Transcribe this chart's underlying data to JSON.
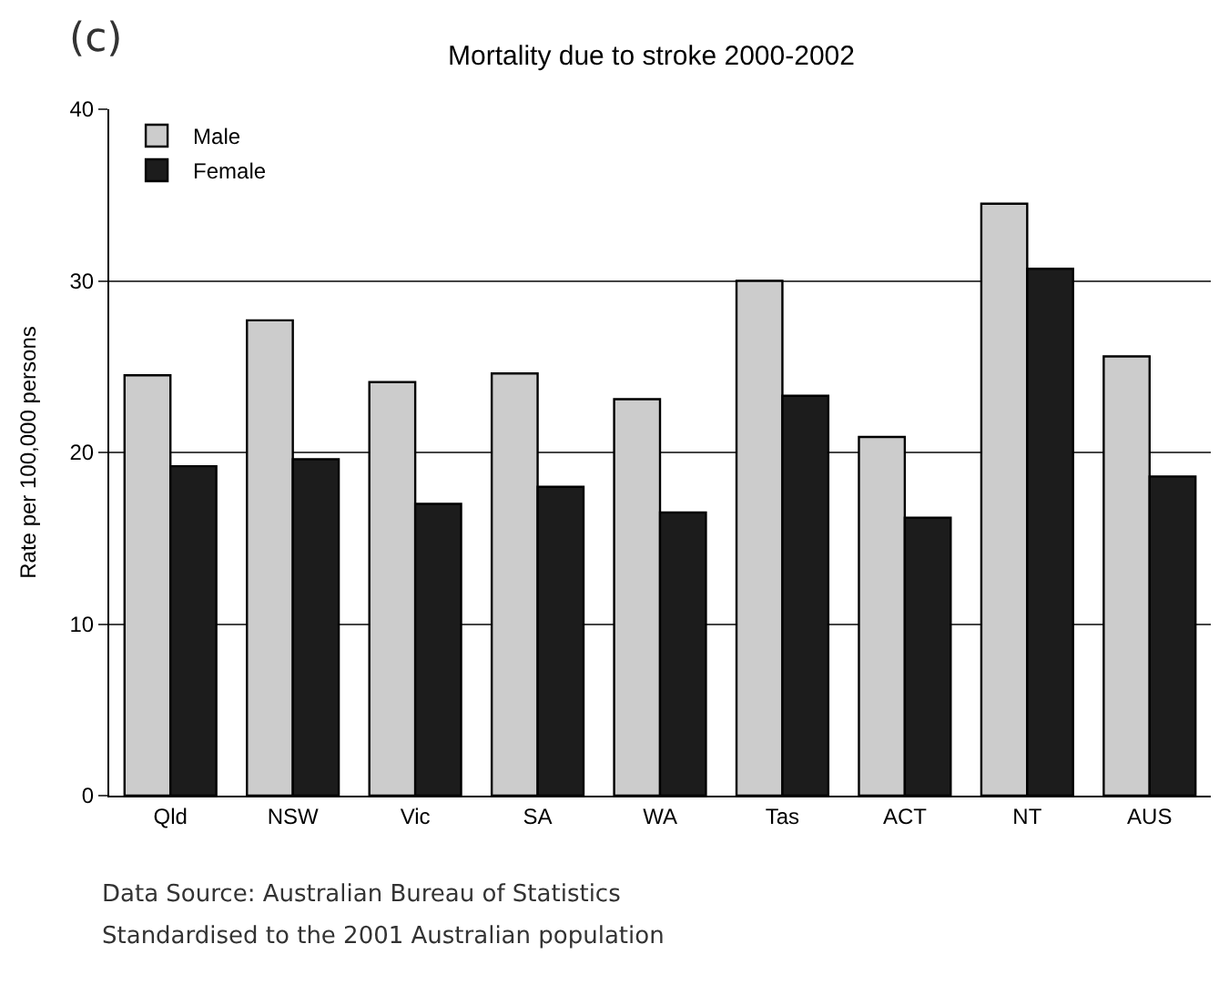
{
  "chart_data": {
    "type": "bar",
    "title": "Mortality due to stroke 2000-2002",
    "ylabel": "Rate per 100,000 persons",
    "categories": [
      "Qld",
      "NSW",
      "Vic",
      "SA",
      "WA",
      "Tas",
      "ACT",
      "NT",
      "AUS"
    ],
    "series": [
      {
        "name": "Male",
        "color": "#cccccc",
        "values": [
          24.5,
          27.7,
          24.1,
          24.6,
          23.1,
          30.0,
          20.9,
          34.5,
          25.6
        ]
      },
      {
        "name": "Female",
        "color": "#1c1c1c",
        "values": [
          19.2,
          19.6,
          17.0,
          18.0,
          16.5,
          23.3,
          16.2,
          30.7,
          18.6
        ]
      }
    ],
    "ylim": [
      0,
      40
    ],
    "yticks": [
      0,
      10,
      20,
      30,
      40
    ],
    "grid": "y",
    "legend": "top left",
    "annotations": [
      "(c)",
      "Data Source: Australian Bureau of Statistics",
      "Standardised to the 2001 Australian population"
    ]
  }
}
